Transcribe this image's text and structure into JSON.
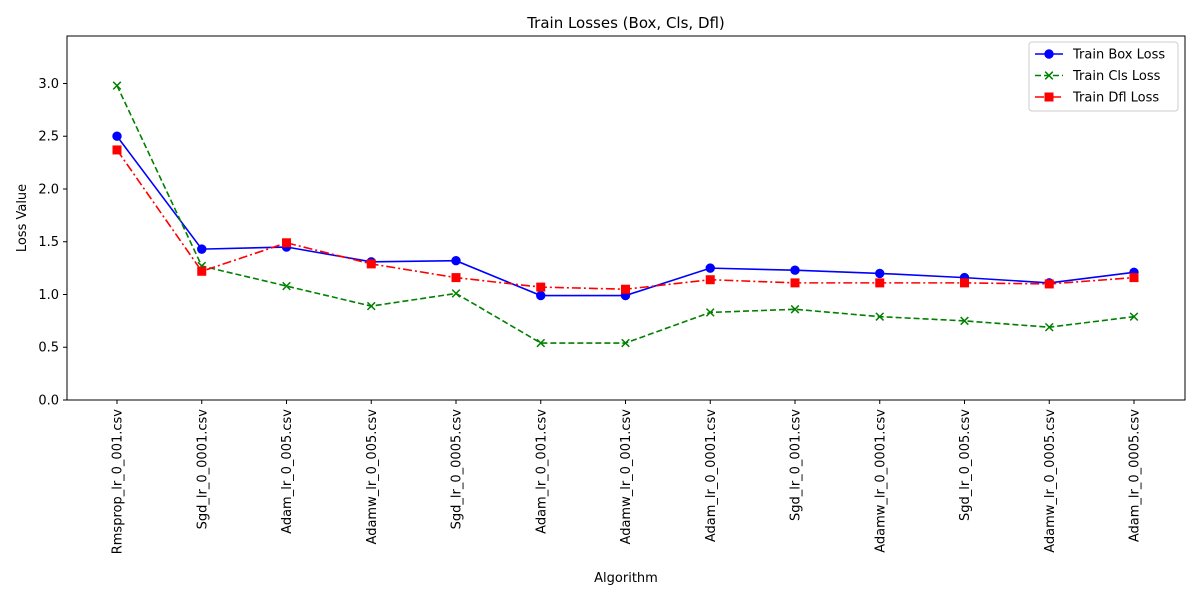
{
  "chart_data": {
    "type": "line",
    "title": "Train Losses (Box, Cls, Dfl)",
    "xlabel": "Algorithm",
    "ylabel": "Loss Value",
    "ylim": [
      0,
      3.45
    ],
    "yticks": [
      0.0,
      0.5,
      1.0,
      1.5,
      2.0,
      2.5,
      3.0
    ],
    "ytick_labels": [
      "0.0",
      "0.5",
      "1.0",
      "1.5",
      "2.0",
      "2.5",
      "3.0"
    ],
    "grid": false,
    "legend_position": "top-right",
    "categories": [
      "Rmsprop_lr_0_001.csv",
      "Sgd_lr_0_0001.csv",
      "Adam_lr_0_005.csv",
      "Adamw_lr_0_005.csv",
      "Sgd_lr_0_0005.csv",
      "Adam_lr_0_001.csv",
      "Adamw_lr_0_001.csv",
      "Adam_lr_0_0001.csv",
      "Sgd_lr_0_001.csv",
      "Adamw_lr_0_0001.csv",
      "Sgd_lr_0_005.csv",
      "Adamw_lr_0_0005.csv",
      "Adam_lr_0_0005.csv"
    ],
    "series": [
      {
        "name": "Train Box Loss",
        "color": "#0000ff",
        "linestyle": "solid",
        "marker": "circle",
        "values": [
          2.5,
          1.43,
          1.45,
          1.31,
          1.32,
          0.99,
          0.99,
          1.25,
          1.23,
          1.2,
          1.16,
          1.11,
          1.21
        ]
      },
      {
        "name": "Train Cls Loss",
        "color": "#008000",
        "linestyle": "dashed",
        "marker": "x",
        "values": [
          2.98,
          1.27,
          1.08,
          0.89,
          1.01,
          0.54,
          0.54,
          0.83,
          0.86,
          0.79,
          0.75,
          0.69,
          0.79
        ]
      },
      {
        "name": "Train Dfl Loss",
        "color": "#ff0000",
        "linestyle": "dashdot",
        "marker": "square",
        "values": [
          2.37,
          1.22,
          1.49,
          1.29,
          1.16,
          1.07,
          1.05,
          1.14,
          1.11,
          1.11,
          1.11,
          1.1,
          1.16
        ]
      }
    ]
  }
}
